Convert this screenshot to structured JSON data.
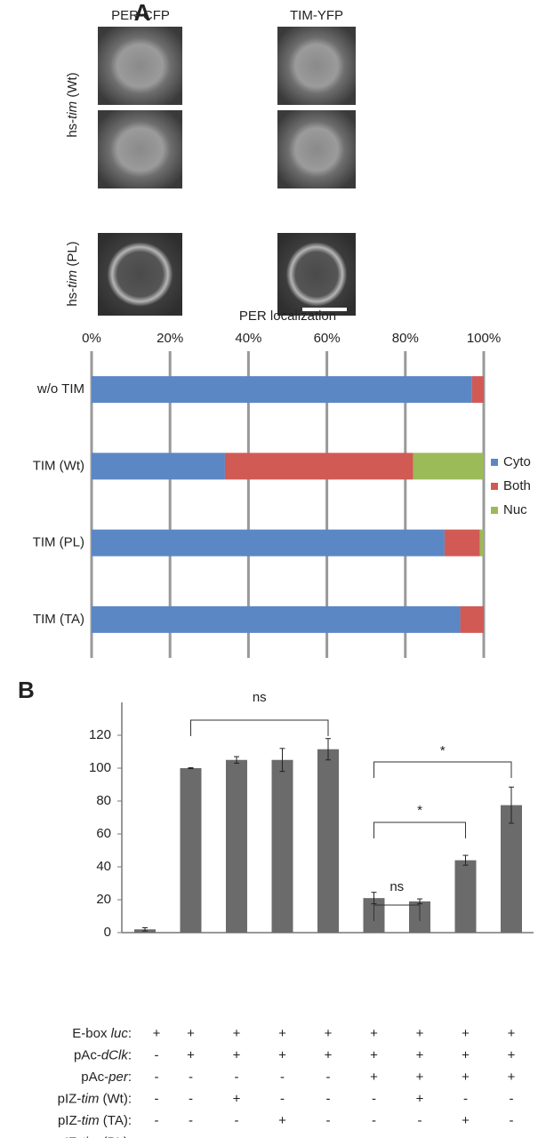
{
  "panel_a": {
    "label": "A",
    "columns": [
      "PER-CFP",
      "TIM-YFP"
    ],
    "rows": [
      [
        "hs-",
        "tim",
        " (Wt)"
      ],
      [
        "hs-",
        "tim",
        " (PL)"
      ]
    ]
  },
  "chart_data": [
    {
      "type": "stacked-barh",
      "title": "PER localization",
      "categories": [
        "w/o TIM",
        "TIM (Wt)",
        "TIM (PL)",
        "TIM (TA)"
      ],
      "series": [
        {
          "name": "Cyto",
          "color": "#5b87c5",
          "values": [
            97,
            34,
            90,
            94
          ]
        },
        {
          "name": "Both",
          "color": "#d15a55",
          "values": [
            3,
            48,
            9,
            6
          ]
        },
        {
          "name": "Nuc",
          "color": "#9bbb59",
          "values": [
            0,
            18,
            1,
            0
          ]
        }
      ],
      "xlim": [
        0,
        100
      ],
      "xticks": [
        {
          "value": 0,
          "label": "0%"
        },
        {
          "value": 20,
          "label": "20%"
        },
        {
          "value": 40,
          "label": "40%"
        },
        {
          "value": 60,
          "label": "60%"
        },
        {
          "value": 80,
          "label": "80%"
        },
        {
          "value": 100,
          "label": "100%"
        }
      ],
      "grid": true,
      "legend": "right"
    },
    {
      "type": "bar",
      "color": "#6b6b6b",
      "values": [
        2,
        100,
        105,
        105,
        111.5,
        21,
        19,
        44,
        77.5
      ],
      "errors": [
        1,
        0.3,
        2,
        7,
        6.5,
        3.5,
        1.5,
        3,
        11
      ],
      "ylim": [
        0,
        140
      ],
      "yticks": [
        0,
        20,
        40,
        60,
        80,
        100,
        120
      ],
      "annotations": [
        "ns",
        "*",
        "*",
        "ns"
      ]
    }
  ],
  "panel_b": {
    "label": "B"
  },
  "table": {
    "rows": [
      {
        "label": [
          "E-box ",
          "luc",
          ":"
        ],
        "cells": [
          "+",
          "+",
          "+",
          "+",
          "+",
          "+",
          "+",
          "+",
          "+"
        ]
      },
      {
        "label": [
          "pAc-",
          "dClk",
          ":"
        ],
        "cells": [
          "-",
          "+",
          "+",
          "+",
          "+",
          "+",
          "+",
          "+",
          "+"
        ]
      },
      {
        "label": [
          "pAc-",
          "per",
          ":"
        ],
        "cells": [
          "-",
          "-",
          "-",
          "-",
          "-",
          "+",
          "+",
          "+",
          "+"
        ]
      },
      {
        "label": [
          "pIZ-",
          "tim",
          " (Wt):"
        ],
        "cells": [
          "-",
          "-",
          "+",
          "-",
          "-",
          "-",
          "+",
          "-",
          "-"
        ]
      },
      {
        "label": [
          "pIZ-",
          "tim",
          " (TA):"
        ],
        "cells": [
          "-",
          "-",
          "-",
          "+",
          "-",
          "-",
          "-",
          "+",
          "-"
        ]
      },
      {
        "label": [
          "pIZ-",
          "tim",
          " (PL):"
        ],
        "cells": [
          "-",
          "-",
          "-",
          "-",
          "+",
          "-",
          "-",
          "-",
          "+"
        ]
      }
    ]
  }
}
